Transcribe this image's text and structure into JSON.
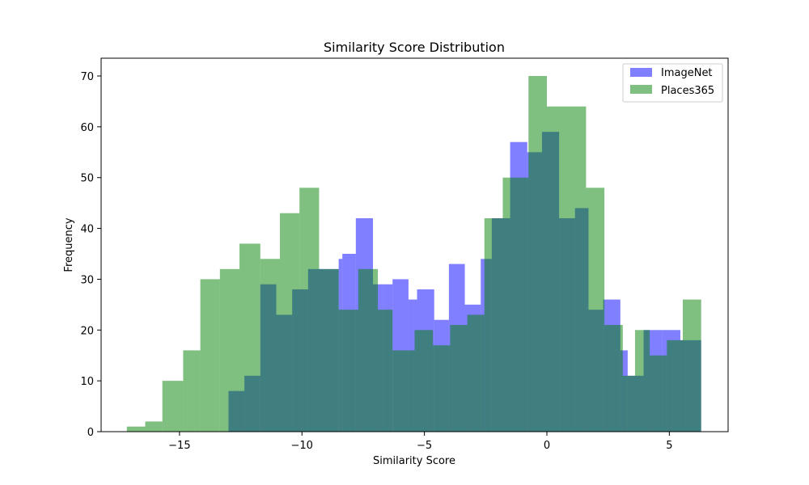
{
  "chart_data": {
    "type": "bar",
    "subtype": "overlapping-histogram",
    "title": "Similarity Score Distribution",
    "xlabel": "Similarity Score",
    "ylabel": "Frequency",
    "xlim": [
      -18.2,
      7.4
    ],
    "ylim": [
      0,
      73.5
    ],
    "x_ticks": [
      -15,
      -10,
      -5,
      0,
      5
    ],
    "x_tick_labels": [
      "−15",
      "−10",
      "−5",
      "0",
      "5"
    ],
    "y_ticks": [
      0,
      10,
      20,
      30,
      40,
      50,
      60,
      70
    ],
    "y_tick_labels": [
      "0",
      "10",
      "20",
      "30",
      "40",
      "50",
      "60",
      "70"
    ],
    "grid": false,
    "legend_position": "top-right",
    "series": [
      {
        "name": "ImageNet",
        "color": "#0000ff",
        "alpha": 0.5,
        "bins": [
          {
            "x0": -13.0,
            "x1": -12.35,
            "count": 8
          },
          {
            "x0": -12.35,
            "x1": -11.7,
            "count": 11
          },
          {
            "x0": -11.7,
            "x1": -11.05,
            "count": 29
          },
          {
            "x0": -11.05,
            "x1": -10.4,
            "count": 23
          },
          {
            "x0": -10.4,
            "x1": -9.75,
            "count": 28
          },
          {
            "x0": -9.75,
            "x1": -8.5,
            "count": 32
          },
          {
            "x0": -8.5,
            "x1": -8.35,
            "count": 34
          },
          {
            "x0": -8.35,
            "x1": -7.8,
            "count": 35
          },
          {
            "x0": -7.8,
            "x1": -7.1,
            "count": 42
          },
          {
            "x0": -7.1,
            "x1": -6.7,
            "count": 29
          },
          {
            "x0": -6.7,
            "x1": -6.3,
            "count": 29
          },
          {
            "x0": -6.3,
            "x1": -5.65,
            "count": 30
          },
          {
            "x0": -5.65,
            "x1": -5.3,
            "count": 26
          },
          {
            "x0": -5.3,
            "x1": -4.6,
            "count": 28
          },
          {
            "x0": -4.6,
            "x1": -4.0,
            "count": 22
          },
          {
            "x0": -4.0,
            "x1": -3.35,
            "count": 33
          },
          {
            "x0": -3.35,
            "x1": -2.7,
            "count": 25
          },
          {
            "x0": -2.7,
            "x1": -2.25,
            "count": 34
          },
          {
            "x0": -2.25,
            "x1": -1.5,
            "count": 42
          },
          {
            "x0": -1.5,
            "x1": -0.8,
            "count": 57
          },
          {
            "x0": -0.8,
            "x1": -0.2,
            "count": 55
          },
          {
            "x0": -0.2,
            "x1": 0.5,
            "count": 59
          },
          {
            "x0": 0.5,
            "x1": 1.15,
            "count": 42
          },
          {
            "x0": 1.15,
            "x1": 1.7,
            "count": 44
          },
          {
            "x0": 1.7,
            "x1": 2.3,
            "count": 24
          },
          {
            "x0": 2.3,
            "x1": 3.0,
            "count": 26
          },
          {
            "x0": 3.0,
            "x1": 3.3,
            "count": 16
          },
          {
            "x0": 3.3,
            "x1": 3.95,
            "count": 11
          },
          {
            "x0": 3.95,
            "x1": 4.7,
            "count": 20
          },
          {
            "x0": 4.7,
            "x1": 5.45,
            "count": 20
          },
          {
            "x0": 5.45,
            "x1": 6.3,
            "count": 18
          }
        ]
      },
      {
        "name": "Places365",
        "color": "#008000",
        "alpha": 0.5,
        "bins": [
          {
            "x0": -17.15,
            "x1": -16.4,
            "count": 1
          },
          {
            "x0": -16.4,
            "x1": -15.7,
            "count": 2
          },
          {
            "x0": -15.7,
            "x1": -14.85,
            "count": 10
          },
          {
            "x0": -14.85,
            "x1": -14.15,
            "count": 16
          },
          {
            "x0": -14.15,
            "x1": -13.35,
            "count": 30
          },
          {
            "x0": -13.35,
            "x1": -12.55,
            "count": 32
          },
          {
            "x0": -12.55,
            "x1": -11.7,
            "count": 37
          },
          {
            "x0": -11.7,
            "x1": -10.9,
            "count": 34
          },
          {
            "x0": -10.9,
            "x1": -10.1,
            "count": 43
          },
          {
            "x0": -10.1,
            "x1": -9.3,
            "count": 48
          },
          {
            "x0": -9.3,
            "x1": -8.5,
            "count": 32
          },
          {
            "x0": -8.5,
            "x1": -7.7,
            "count": 24
          },
          {
            "x0": -7.7,
            "x1": -6.9,
            "count": 32
          },
          {
            "x0": -6.9,
            "x1": -6.3,
            "count": 24
          },
          {
            "x0": -6.3,
            "x1": -5.4,
            "count": 16
          },
          {
            "x0": -5.4,
            "x1": -4.65,
            "count": 20
          },
          {
            "x0": -4.65,
            "x1": -3.95,
            "count": 17
          },
          {
            "x0": -3.95,
            "x1": -3.25,
            "count": 21
          },
          {
            "x0": -3.25,
            "x1": -2.55,
            "count": 23
          },
          {
            "x0": -2.55,
            "x1": -1.8,
            "count": 42
          },
          {
            "x0": -1.8,
            "x1": -0.75,
            "count": 50
          },
          {
            "x0": -0.75,
            "x1": 0.0,
            "count": 70
          },
          {
            "x0": 0.0,
            "x1": 1.6,
            "count": 64
          },
          {
            "x0": 1.6,
            "x1": 2.35,
            "count": 48
          },
          {
            "x0": 2.35,
            "x1": 3.1,
            "count": 21
          },
          {
            "x0": 3.1,
            "x1": 3.6,
            "count": 11
          },
          {
            "x0": 3.6,
            "x1": 4.2,
            "count": 20
          },
          {
            "x0": 4.2,
            "x1": 4.9,
            "count": 15
          },
          {
            "x0": 4.9,
            "x1": 5.55,
            "count": 18
          },
          {
            "x0": 5.55,
            "x1": 6.3,
            "count": 26
          }
        ]
      }
    ]
  }
}
